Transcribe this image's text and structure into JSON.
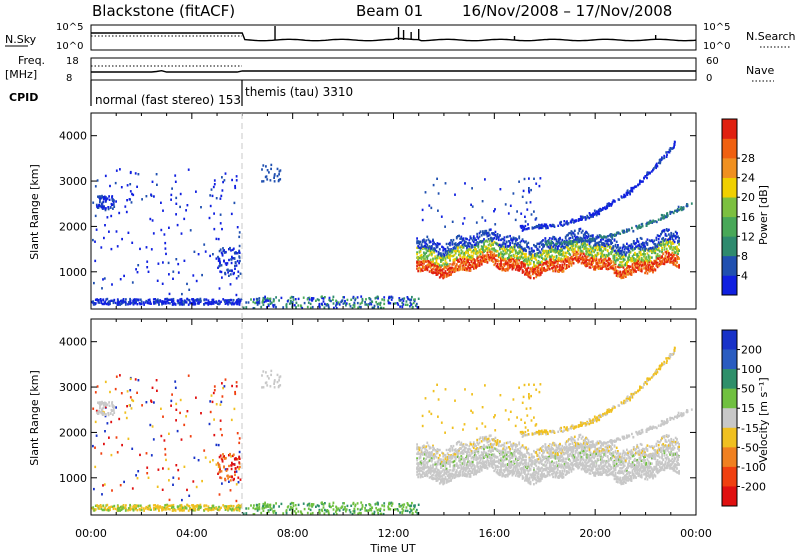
{
  "header": {
    "radar": "Blackstone (fitACF)",
    "beam": "Beam 01",
    "date_range": "16/Nov/2008 – 17/Nov/2008"
  },
  "top_panels": {
    "nsky_label": "N.Sky",
    "nsky_ticks": [
      "10^5",
      "10^0"
    ],
    "nsearch_label": "N.Search",
    "nsearch_ticks": [
      "10^5",
      "10^0"
    ],
    "freq_label": "Freq.",
    "freq_unit": "[MHz]",
    "freq_ticks": [
      "18",
      "8"
    ],
    "nave_label": "Nave",
    "nave_ticks": [
      "60",
      "0"
    ],
    "cpid_label": "CPID",
    "cpid_segments": [
      {
        "label": "normal (fast stereo) 153",
        "start_hour": 0,
        "end_hour": 6
      },
      {
        "label": "themis (tau) 3310",
        "start_hour": 6,
        "end_hour": 24
      }
    ]
  },
  "chart_data": [
    {
      "type": "heatmap",
      "name": "power",
      "ylabel": "Slant Range [km]",
      "xlim": [
        0,
        24
      ],
      "ylim": [
        180,
        4500
      ],
      "yticks": [
        1000,
        2000,
        3000,
        4000
      ],
      "colorbar": {
        "label": "Power [dB]",
        "ticks": [
          "4",
          "8",
          "12",
          "16",
          "20",
          "24",
          "28"
        ],
        "bins": [
          "#1020e0",
          "#2050b0",
          "#2e8a6e",
          "#48a858",
          "#7cc040",
          "#f0d000",
          "#f09020",
          "#f06010",
          "#e02010"
        ]
      }
    },
    {
      "type": "heatmap",
      "name": "velocity",
      "ylabel": "Slant Range [km]",
      "xlim": [
        0,
        24
      ],
      "ylim": [
        180,
        4500
      ],
      "yticks": [
        1000,
        2000,
        3000,
        4000
      ],
      "xlabel": "Time UT",
      "xtick_labels": [
        "00:00",
        "04:00",
        "08:00",
        "12:00",
        "16:00",
        "20:00",
        "00:00"
      ],
      "xtick_hours": [
        0,
        4,
        8,
        12,
        16,
        20,
        24
      ],
      "colorbar": {
        "label": "Velocity [m s⁻¹]",
        "ticks": [
          "200",
          "100",
          "50",
          "15",
          "-15",
          "-50",
          "-100",
          "-200"
        ],
        "bins": [
          "#1832c8",
          "#2a5cc0",
          "#2e8f6a",
          "#70c040",
          "#c8c8c8",
          "#f0c020",
          "#f08020",
          "#f04010",
          "#e01010"
        ]
      }
    }
  ]
}
